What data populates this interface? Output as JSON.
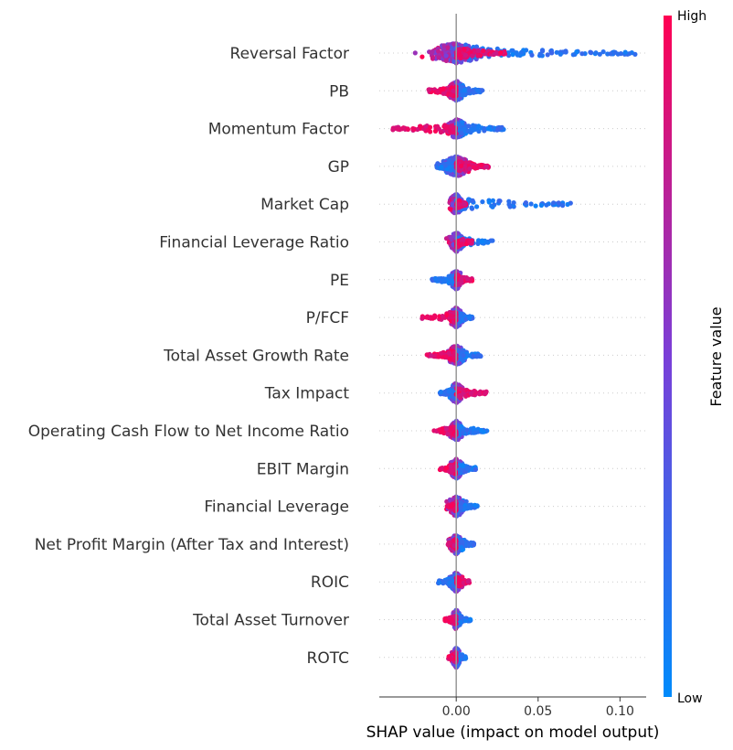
{
  "chart_data": {
    "type": "scatter",
    "subtype": "shap-beeswarm",
    "xlabel": "SHAP value (impact on model output)",
    "xticks": [
      0.0,
      0.05,
      0.1
    ],
    "xtick_labels": [
      "0.00",
      "0.05",
      "0.10"
    ],
    "xlim": [
      -0.047,
      0.116
    ],
    "colorbar": {
      "title": "Feature value",
      "high_label": "High",
      "low_label": "Low",
      "low_color": "#008bfb",
      "high_color": "#ff0052"
    },
    "features": [
      {
        "name": "Reversal Factor",
        "min": -0.024,
        "max": 0.11,
        "core_width": 0.012,
        "low_dir": 1,
        "low_extent": 0.11,
        "high_extent": 0.03,
        "density": 1.0
      },
      {
        "name": "PB",
        "min": -0.017,
        "max": 0.016,
        "core_width": 0.004,
        "low_dir": 1,
        "low_extent": 0.016,
        "high_extent": -0.017,
        "density": 0.6
      },
      {
        "name": "Momentum Factor",
        "min": -0.04,
        "max": 0.029,
        "core_width": 0.004,
        "low_dir": 1,
        "low_extent": 0.029,
        "high_extent": -0.04,
        "density": 0.6
      },
      {
        "name": "GP",
        "min": -0.012,
        "max": 0.02,
        "core_width": 0.006,
        "low_dir": -1,
        "low_extent": -0.012,
        "high_extent": 0.02,
        "density": 0.8
      },
      {
        "name": "Market Cap",
        "min": -0.01,
        "max": 0.071,
        "core_width": 0.003,
        "low_dir": 1,
        "low_extent": 0.071,
        "high_extent": 0.006,
        "density": 0.6
      },
      {
        "name": "Financial Leverage Ratio",
        "min": -0.008,
        "max": 0.023,
        "core_width": 0.003,
        "low_dir": 1,
        "low_extent": 0.023,
        "high_extent": 0.01,
        "density": 0.5
      },
      {
        "name": "PE",
        "min": -0.015,
        "max": 0.01,
        "core_width": 0.003,
        "low_dir": -1,
        "low_extent": -0.015,
        "high_extent": 0.01,
        "density": 0.5
      },
      {
        "name": "P/FCF",
        "min": -0.021,
        "max": 0.01,
        "core_width": 0.003,
        "low_dir": 1,
        "low_extent": 0.01,
        "high_extent": -0.021,
        "density": 0.5
      },
      {
        "name": "Total Asset Growth Rate",
        "min": -0.018,
        "max": 0.015,
        "core_width": 0.004,
        "low_dir": 1,
        "low_extent": 0.015,
        "high_extent": -0.018,
        "density": 0.6
      },
      {
        "name": "Tax Impact",
        "min": -0.01,
        "max": 0.019,
        "core_width": 0.003,
        "low_dir": -1,
        "low_extent": -0.01,
        "high_extent": 0.019,
        "density": 0.5
      },
      {
        "name": "Operating Cash Flow to Net Income Ratio",
        "min": -0.014,
        "max": 0.02,
        "core_width": 0.003,
        "low_dir": 1,
        "low_extent": 0.02,
        "high_extent": -0.014,
        "density": 0.5
      },
      {
        "name": "EBIT Margin",
        "min": -0.01,
        "max": 0.012,
        "core_width": 0.003,
        "low_dir": 1,
        "low_extent": 0.012,
        "high_extent": -0.01,
        "density": 0.5
      },
      {
        "name": "Financial Leverage",
        "min": -0.007,
        "max": 0.013,
        "core_width": 0.004,
        "low_dir": 1,
        "low_extent": 0.013,
        "high_extent": -0.005,
        "density": 0.5
      },
      {
        "name": "Net Profit Margin (After Tax and Interest)",
        "min": -0.005,
        "max": 0.011,
        "core_width": 0.003,
        "low_dir": 1,
        "low_extent": 0.011,
        "high_extent": -0.005,
        "density": 0.5
      },
      {
        "name": "ROIC",
        "min": -0.011,
        "max": 0.008,
        "core_width": 0.003,
        "low_dir": -1,
        "low_extent": -0.011,
        "high_extent": 0.008,
        "density": 0.45
      },
      {
        "name": "Total Asset Turnover",
        "min": -0.007,
        "max": 0.009,
        "core_width": 0.002,
        "low_dir": 1,
        "low_extent": 0.009,
        "high_extent": -0.007,
        "density": 0.45
      },
      {
        "name": "ROTC",
        "min": -0.006,
        "max": 0.006,
        "core_width": 0.002,
        "low_dir": 1,
        "low_extent": 0.006,
        "high_extent": -0.005,
        "density": 0.4
      }
    ]
  }
}
